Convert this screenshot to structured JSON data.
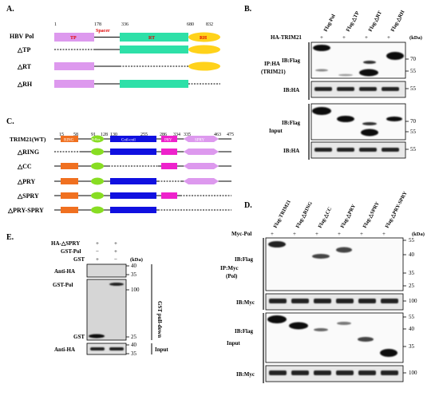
{
  "panelA": {
    "label": "A.",
    "title": "HBV Pol",
    "pos_labels": [
      "1",
      "178",
      "336",
      "680",
      "832"
    ],
    "spacer": "Spacer",
    "domains": [
      "TP",
      "RT",
      "RH"
    ],
    "rows": [
      "△TP",
      "△RT",
      "△RH"
    ],
    "colors": {
      "tp": "#dd99ee",
      "rt": "#2ee0a8",
      "rh": "#ffd21a",
      "label_red": "#e00000"
    }
  },
  "panelB": {
    "label": "B.",
    "lanes": [
      "Flag-Pol",
      "Flag-△TP",
      "Flag-△RT",
      "Flag-△RH"
    ],
    "top_label": "HA-TRIM21",
    "signs": [
      "+",
      "+",
      "+",
      "+"
    ],
    "kda": "(kDa)",
    "group_ip": "IP:HA\n(TRIM21)",
    "group_input": "Input",
    "blots": [
      "IB:Flag",
      "IB:HA",
      "IB:Flag",
      "IB:HA"
    ],
    "markers": [
      "70",
      "55",
      "55",
      "70",
      "55",
      "55"
    ]
  },
  "panelC": {
    "label": "C.",
    "wt": "TRIM21(WT)",
    "pos_labels": [
      "15",
      "58",
      "91",
      "128",
      "130",
      "255",
      "286",
      "334",
      "335",
      "463",
      "475"
    ],
    "domains": [
      "RING",
      "B-Box",
      "Coil-coil",
      "PRY",
      "SPRY"
    ],
    "rows": [
      "△RING",
      "△CC",
      "△PRY",
      "△SPRY",
      "△PRY-SPRY"
    ],
    "colors": {
      "ring": "#f07020",
      "bbox": "#88dd22",
      "cc": "#1010e0",
      "pry": "#ee22cc",
      "spry": "#dd99ee"
    }
  },
  "panelD": {
    "label": "D.",
    "lanes": [
      "Flag-TRIM21",
      "Flag-△RING",
      "Flag-△CC",
      "Flag-△PRY",
      "Flag-△SPRY",
      "Flag-△PRY-SPRY"
    ],
    "top_label": "Myc-Pol",
    "signs": [
      "+",
      "+",
      "+",
      "+",
      "+",
      "+"
    ],
    "kda": "(kDa)",
    "group_ip": "IP:Myc\n(Pol)",
    "group_input": "Input",
    "blots": [
      "IB:Flag",
      "IB:Myc",
      "IB:Flag",
      "IB:Myc"
    ],
    "markers": [
      "55",
      "40",
      "35",
      "25",
      "100",
      "55",
      "40",
      "35",
      "100"
    ]
  },
  "panelE": {
    "label": "E.",
    "rows": [
      "HA-△SPRY",
      "GST-Pol",
      "GST"
    ],
    "signs": [
      [
        "+",
        "+"
      ],
      [
        "−",
        "+"
      ],
      [
        "+",
        "−"
      ]
    ],
    "kda": "(kDa)",
    "band_labels": [
      "Anti-HA",
      "GST-Pol",
      "GST",
      "Anti-HA"
    ],
    "markers": [
      "40",
      "35",
      "100",
      "25",
      "40",
      "35"
    ],
    "groups": [
      "GST pull-down",
      "Input"
    ]
  }
}
